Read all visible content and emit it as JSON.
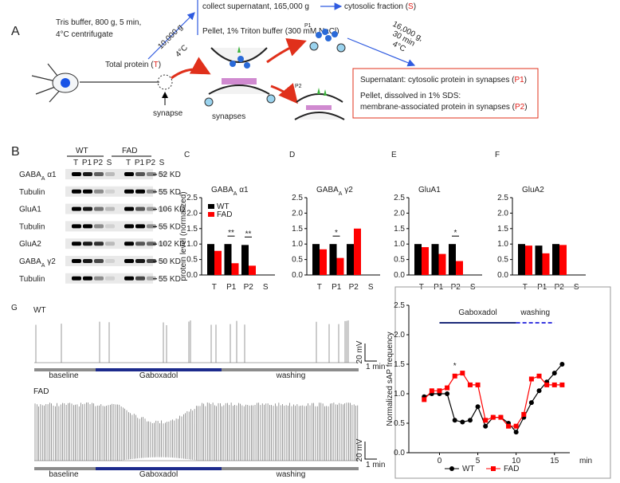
{
  "diagram": {
    "panel": "A",
    "tris": [
      "Tris buffer, 800 g, 5 min,",
      "4°C centrifugate"
    ],
    "total": [
      "Total protein (",
      "T",
      ")"
    ],
    "spin1": [
      "10,000 g",
      "4°C"
    ],
    "supernatant": "collect supernatant, 165,000 g",
    "cytosolic": [
      "cytosolic fraction (",
      "S",
      ")"
    ],
    "pellet": "Pellet, 1% Triton buffer (300 mM NaCl)",
    "spin2": [
      "16,000 g,",
      "30 min",
      "4°C"
    ],
    "fractions": [
      "P1",
      "P2"
    ],
    "synapse": "synapse",
    "synapses": "synapses",
    "box": [
      [
        "Supernatant: cytosolic protein in synapses (",
        "P1",
        ")"
      ],
      [
        "Pellet, dissolved in 1% SDS:"
      ],
      [
        "membrane-associated protein in synapses (",
        "P2",
        ")"
      ]
    ]
  },
  "blot": {
    "panel": "B",
    "groups": [
      "WT",
      "FAD"
    ],
    "lanes": [
      "T",
      "P1",
      "P2",
      "S",
      "T",
      "P1",
      "P2",
      "S"
    ],
    "rows": [
      {
        "protein": [
          "GABA",
          "A",
          " α1"
        ],
        "size": "52 KD"
      },
      {
        "protein": [
          "Tubulin"
        ],
        "size": "55 KD"
      },
      {
        "protein": [
          "GluA1"
        ],
        "size": "106 KD"
      },
      {
        "protein": [
          "Tubulin"
        ],
        "size": "55 KD"
      },
      {
        "protein": [
          "GluA2"
        ],
        "size": "102 KD"
      },
      {
        "protein": [
          "GABA",
          "A",
          " γ2"
        ],
        "size": "50 KD"
      },
      {
        "protein": [
          "Tubulin"
        ],
        "size": "55 KD"
      }
    ]
  },
  "traces": {
    "panel": "G",
    "labels": [
      "WT",
      "FAD"
    ],
    "scale": [
      "20 mV",
      "1 min"
    ],
    "conditions": [
      "baseline",
      "Gaboxadol",
      "washing"
    ]
  },
  "chart_data": [
    {
      "type": "bar",
      "panel": "C",
      "title": [
        "GABA",
        "A",
        " α1"
      ],
      "y_label": "protein level (normalized)",
      "categories": [
        "T",
        "P1",
        "P2",
        "S"
      ],
      "series": [
        {
          "name": "WT",
          "color": "#000000",
          "values": [
            1.0,
            1.0,
            0.97,
            0.0
          ]
        },
        {
          "name": "FAD",
          "color": "#ff0000",
          "values": [
            0.78,
            0.38,
            0.3,
            0.0
          ]
        }
      ],
      "ylim": [
        0,
        2.5
      ],
      "yticks": [
        {
          "value": 0,
          "label": "0.0"
        },
        0.5,
        {
          "value": 1,
          "label": "1.0"
        },
        1.5,
        {
          "value": 2,
          "label": "2.0"
        },
        2.5
      ],
      "legend": "upper left",
      "annotations": [
        {
          "text": "**",
          "category": "P1"
        },
        {
          "text": "**",
          "category": "P2"
        }
      ]
    },
    {
      "type": "bar",
      "panel": "D",
      "title": [
        "GABA",
        "A",
        " γ2"
      ],
      "categories": [
        "T",
        "P1",
        "P2",
        "S"
      ],
      "series": [
        {
          "color": "#000000",
          "values": [
            1.0,
            1.0,
            1.0,
            0.0
          ]
        },
        {
          "color": "#ff0000",
          "values": [
            0.83,
            0.55,
            1.5,
            0.0
          ]
        }
      ],
      "ylim": [
        0,
        2.5
      ],
      "yticks": [
        {
          "value": 0,
          "label": "0.0"
        },
        0.5,
        {
          "value": 1,
          "label": "1.0"
        },
        1.5,
        {
          "value": 2,
          "label": "2.0"
        },
        2.5
      ],
      "annotations": [
        {
          "text": "*",
          "category": "P1"
        }
      ]
    },
    {
      "type": "bar",
      "panel": "E",
      "title": [
        "GluA1"
      ],
      "categories": [
        "T",
        "P1",
        "P2",
        "S"
      ],
      "series": [
        {
          "color": "#000000",
          "values": [
            1.0,
            1.0,
            1.0,
            0.0
          ]
        },
        {
          "color": "#ff0000",
          "values": [
            0.9,
            0.68,
            0.45,
            0.0
          ]
        }
      ],
      "ylim": [
        0,
        2.5
      ],
      "yticks": [
        {
          "value": 0,
          "label": "0.0"
        },
        0.5,
        {
          "value": 1,
          "label": "1.0"
        },
        1.5,
        {
          "value": 2,
          "label": "2.0"
        },
        2.5
      ],
      "annotations": [
        {
          "text": "*",
          "category": "P2"
        }
      ]
    },
    {
      "type": "bar",
      "panel": "F",
      "title": [
        "GluA2"
      ],
      "categories": [
        "T",
        "P1",
        "P2",
        "S"
      ],
      "series": [
        {
          "color": "#000000",
          "values": [
            1.0,
            0.95,
            1.0,
            0.0
          ]
        },
        {
          "color": "#ff0000",
          "values": [
            0.95,
            0.7,
            0.97,
            0.0
          ]
        }
      ],
      "ylim": [
        0,
        2.5
      ],
      "yticks": [
        {
          "value": 0,
          "label": "0.0"
        },
        0.5,
        {
          "value": 1,
          "label": "1.0"
        },
        1.5,
        {
          "value": 2,
          "label": "2.0"
        },
        2.5
      ]
    },
    {
      "type": "line",
      "y_label": "Normalized sAP frequency",
      "x_label": "min",
      "x": [
        -2,
        -1,
        0,
        1,
        2,
        3,
        4,
        5,
        6,
        7,
        8,
        9,
        10,
        11,
        12,
        13,
        14,
        15,
        16
      ],
      "series": [
        {
          "name": "WT",
          "color": "#000000",
          "marker": "circle",
          "values": [
            0.95,
            1.0,
            1.0,
            1.0,
            0.55,
            0.52,
            0.55,
            0.78,
            0.45,
            0.6,
            0.6,
            0.5,
            0.35,
            0.6,
            0.85,
            1.05,
            1.2,
            1.35,
            1.5
          ]
        },
        {
          "name": "FAD",
          "color": "#ff0000",
          "marker": "square",
          "values": [
            0.9,
            1.05,
            1.05,
            1.1,
            1.3,
            1.35,
            1.15,
            1.15,
            0.55,
            0.6,
            0.6,
            0.45,
            0.45,
            0.65,
            1.25,
            1.3,
            1.15,
            1.15,
            1.15
          ]
        }
      ],
      "xlim": [
        -4,
        17
      ],
      "xticks": [
        0,
        5,
        10,
        15
      ],
      "ylim": [
        0,
        2.5
      ],
      "yticks": [
        {
          "value": 0,
          "label": "0.0"
        },
        0.5,
        {
          "value": 1,
          "label": "1.0"
        },
        1.5,
        {
          "value": 2,
          "label": "2.0"
        },
        2.5
      ],
      "periods": [
        {
          "label": "Gaboxadol",
          "start": 0,
          "end": 10,
          "style": "solid",
          "color": "#1c2a7a"
        },
        {
          "label": "washing",
          "start": 10,
          "end": 15,
          "style": "dashed",
          "color": "#3a3ae0"
        }
      ],
      "annotations": [
        {
          "text": "*",
          "x": 2
        }
      ],
      "legend": "bottom"
    }
  ]
}
